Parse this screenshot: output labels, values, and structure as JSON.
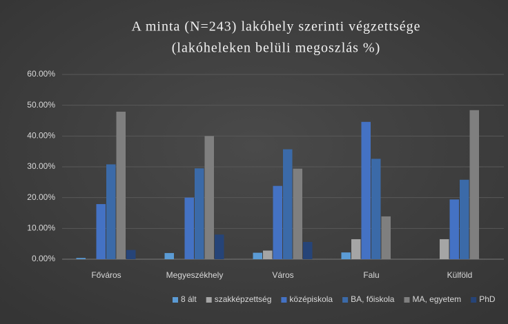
{
  "chart_data": {
    "type": "bar",
    "title": [
      "A minta (N=243) lakóhely szerinti végzettsége",
      "(lakóheleken belüli megoszlás %)"
    ],
    "categories": [
      "Főváros",
      "Megyeszékhely",
      "Város",
      "Falu",
      "Külföld"
    ],
    "series": [
      {
        "name": "8 ált",
        "color": "#5b9bd5",
        "values": [
          0.4,
          2.0,
          2.1,
          2.2,
          0
        ]
      },
      {
        "name": "szakképzettség",
        "color": "#a5a5a5",
        "values": [
          0,
          0,
          2.8,
          6.5,
          6.5
        ]
      },
      {
        "name": "középiskola",
        "color": "#4472c4",
        "values": [
          17.9,
          20.0,
          23.8,
          44.6,
          19.4
        ]
      },
      {
        "name": "BA, főiskola",
        "color": "#3b6aa8",
        "values": [
          30.8,
          29.5,
          35.7,
          32.6,
          25.8
        ]
      },
      {
        "name": "MA, egyetem",
        "color": "#7f7f7f",
        "values": [
          47.9,
          40.0,
          29.4,
          13.9,
          48.4
        ]
      },
      {
        "name": "PhD",
        "color": "#264478",
        "values": [
          3.0,
          8.0,
          5.6,
          0,
          0
        ]
      }
    ],
    "ylim": [
      0,
      60
    ],
    "yticks": [
      {
        "value": 0,
        "label": "0.00%"
      },
      {
        "value": 10,
        "label": "10.00%"
      },
      {
        "value": 20,
        "label": "20.00%"
      },
      {
        "value": 30,
        "label": "30.00%"
      },
      {
        "value": 40,
        "label": "40.00%"
      },
      {
        "value": 50,
        "label": "50.00%"
      },
      {
        "value": 60,
        "label": "60.00%"
      }
    ],
    "grid": true,
    "legend": "bottom"
  }
}
